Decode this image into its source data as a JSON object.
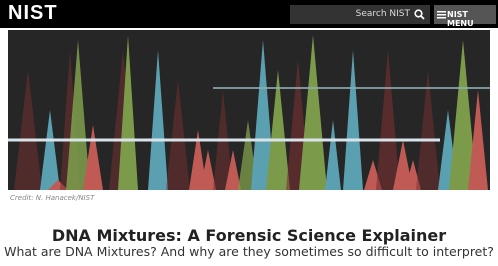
{
  "header": {
    "logo": "NIST",
    "search_placeholder": "Search NIST",
    "menu": "NIST MENU"
  },
  "image": {
    "credit": "Credit: N. Hanacek/NIST"
  },
  "article": {
    "title": "DNA Mixtures: A Forensic Science Explainer",
    "subtitle": "What are DNA Mixtures? And why are they sometimes so difficult to interpret?"
  }
}
